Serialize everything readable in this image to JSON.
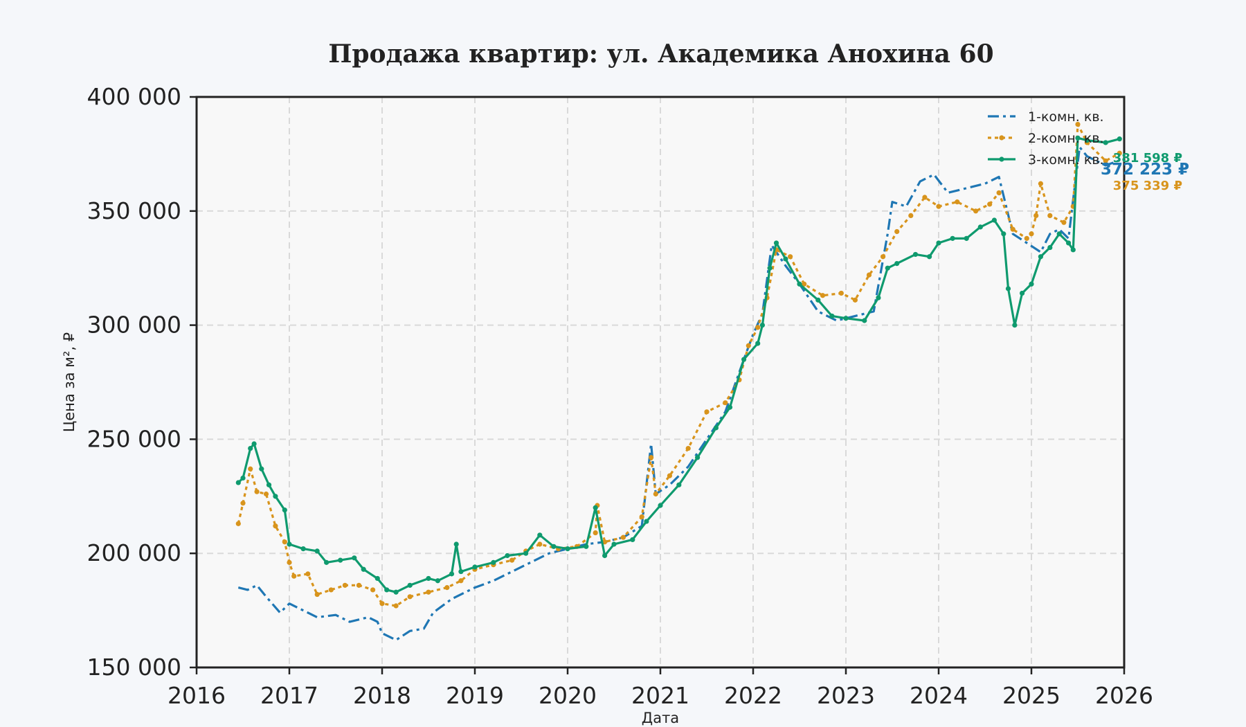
{
  "chart_data": {
    "type": "line",
    "title": "Продажа квартир: ул. Академика Анохина 60",
    "xlabel": "Дата",
    "ylabel": "Цена за м², ₽",
    "xlim": [
      2016,
      2026
    ],
    "ylim": [
      150000,
      400000
    ],
    "x_ticks": [
      "2016",
      "2017",
      "2018",
      "2019",
      "2020",
      "2021",
      "2022",
      "2023",
      "2024",
      "2025",
      "2026"
    ],
    "y_ticks": [
      "150 000",
      "200 000",
      "250 000",
      "300 000",
      "350 000",
      "400 000"
    ],
    "grid": true,
    "legend_position": "top-right",
    "series": [
      {
        "name": "1-комн. кв.",
        "color": "#1f77b4",
        "style": "dashdot",
        "end_label": "372 223 ₽",
        "points": [
          [
            2016.45,
            185000
          ],
          [
            2016.55,
            184000
          ],
          [
            2016.65,
            186000
          ],
          [
            2016.75,
            181000
          ],
          [
            2016.9,
            174000
          ],
          [
            2017.0,
            178000
          ],
          [
            2017.1,
            176000
          ],
          [
            2017.3,
            172000
          ],
          [
            2017.5,
            173000
          ],
          [
            2017.65,
            170000
          ],
          [
            2017.85,
            172000
          ],
          [
            2017.95,
            170000
          ],
          [
            2018.0,
            165000
          ],
          [
            2018.15,
            162000
          ],
          [
            2018.3,
            166000
          ],
          [
            2018.45,
            167000
          ],
          [
            2018.55,
            174000
          ],
          [
            2018.75,
            180000
          ],
          [
            2018.9,
            183000
          ],
          [
            2019.0,
            185000
          ],
          [
            2019.2,
            188000
          ],
          [
            2019.4,
            192000
          ],
          [
            2019.6,
            196000
          ],
          [
            2019.8,
            200000
          ],
          [
            2020.0,
            202000
          ],
          [
            2020.2,
            204000
          ],
          [
            2020.4,
            205000
          ],
          [
            2020.6,
            207000
          ],
          [
            2020.8,
            212000
          ],
          [
            2020.9,
            248000
          ],
          [
            2020.95,
            226000
          ],
          [
            2021.1,
            230000
          ],
          [
            2021.3,
            238000
          ],
          [
            2021.5,
            250000
          ],
          [
            2021.7,
            262000
          ],
          [
            2021.9,
            285000
          ],
          [
            2022.0,
            296000
          ],
          [
            2022.1,
            305000
          ],
          [
            2022.2,
            335000
          ],
          [
            2022.35,
            326000
          ],
          [
            2022.5,
            318000
          ],
          [
            2022.7,
            306000
          ],
          [
            2022.9,
            302000
          ],
          [
            2023.1,
            304000
          ],
          [
            2023.3,
            306000
          ],
          [
            2023.45,
            340000
          ],
          [
            2023.5,
            354000
          ],
          [
            2023.65,
            352000
          ],
          [
            2023.8,
            363000
          ],
          [
            2023.95,
            366000
          ],
          [
            2024.1,
            358000
          ],
          [
            2024.3,
            360000
          ],
          [
            2024.5,
            362000
          ],
          [
            2024.65,
            365000
          ],
          [
            2024.8,
            340000
          ],
          [
            2024.95,
            336000
          ],
          [
            2025.1,
            332000
          ],
          [
            2025.2,
            340000
          ],
          [
            2025.3,
            342000
          ],
          [
            2025.4,
            338000
          ],
          [
            2025.45,
            355000
          ],
          [
            2025.52,
            378000
          ],
          [
            2025.6,
            374000
          ],
          [
            2025.8,
            370000
          ],
          [
            2025.95,
            372223
          ]
        ]
      },
      {
        "name": "2-комн. кв.",
        "color": "#d8941c",
        "style": "dotted-markers",
        "end_label": "375 339 ₽",
        "points": [
          [
            2016.45,
            213000
          ],
          [
            2016.5,
            222000
          ],
          [
            2016.58,
            237000
          ],
          [
            2016.65,
            227000
          ],
          [
            2016.75,
            226000
          ],
          [
            2016.85,
            212000
          ],
          [
            2016.95,
            205000
          ],
          [
            2017.0,
            196000
          ],
          [
            2017.05,
            190000
          ],
          [
            2017.2,
            191000
          ],
          [
            2017.3,
            182000
          ],
          [
            2017.45,
            184000
          ],
          [
            2017.6,
            186000
          ],
          [
            2017.75,
            186000
          ],
          [
            2017.9,
            184000
          ],
          [
            2018.0,
            178000
          ],
          [
            2018.15,
            177000
          ],
          [
            2018.3,
            181000
          ],
          [
            2018.5,
            183000
          ],
          [
            2018.7,
            185000
          ],
          [
            2018.85,
            188000
          ],
          [
            2019.0,
            193000
          ],
          [
            2019.2,
            195000
          ],
          [
            2019.4,
            197000
          ],
          [
            2019.55,
            201000
          ],
          [
            2019.7,
            204000
          ],
          [
            2019.9,
            202000
          ],
          [
            2020.1,
            203000
          ],
          [
            2020.3,
            209000
          ],
          [
            2020.32,
            221000
          ],
          [
            2020.4,
            205000
          ],
          [
            2020.6,
            207000
          ],
          [
            2020.8,
            216000
          ],
          [
            2020.9,
            242000
          ],
          [
            2020.95,
            226000
          ],
          [
            2021.1,
            234000
          ],
          [
            2021.3,
            246000
          ],
          [
            2021.5,
            262000
          ],
          [
            2021.7,
            266000
          ],
          [
            2021.85,
            276000
          ],
          [
            2021.95,
            291000
          ],
          [
            2022.05,
            299000
          ],
          [
            2022.15,
            312000
          ],
          [
            2022.25,
            333000
          ],
          [
            2022.4,
            330000
          ],
          [
            2022.55,
            318000
          ],
          [
            2022.75,
            313000
          ],
          [
            2022.95,
            314000
          ],
          [
            2023.1,
            311000
          ],
          [
            2023.25,
            322000
          ],
          [
            2023.4,
            330000
          ],
          [
            2023.55,
            341000
          ],
          [
            2023.7,
            348000
          ],
          [
            2023.85,
            356000
          ],
          [
            2024.0,
            352000
          ],
          [
            2024.2,
            354000
          ],
          [
            2024.4,
            350000
          ],
          [
            2024.55,
            353000
          ],
          [
            2024.65,
            358000
          ],
          [
            2024.8,
            342000
          ],
          [
            2024.95,
            338000
          ],
          [
            2025.0,
            340000
          ],
          [
            2025.05,
            348000
          ],
          [
            2025.1,
            362000
          ],
          [
            2025.2,
            348000
          ],
          [
            2025.35,
            345000
          ],
          [
            2025.45,
            352000
          ],
          [
            2025.5,
            388000
          ],
          [
            2025.6,
            380000
          ],
          [
            2025.8,
            372000
          ],
          [
            2025.95,
            375339
          ]
        ]
      },
      {
        "name": "3-комн. кв.",
        "color": "#0f9a6e",
        "style": "solid-markers",
        "end_label": "381 598 ₽",
        "points": [
          [
            2016.45,
            231000
          ],
          [
            2016.5,
            233000
          ],
          [
            2016.58,
            246000
          ],
          [
            2016.62,
            248000
          ],
          [
            2016.7,
            237000
          ],
          [
            2016.78,
            230000
          ],
          [
            2016.85,
            225000
          ],
          [
            2016.95,
            219000
          ],
          [
            2017.0,
            204000
          ],
          [
            2017.15,
            202000
          ],
          [
            2017.3,
            201000
          ],
          [
            2017.4,
            196000
          ],
          [
            2017.55,
            197000
          ],
          [
            2017.7,
            198000
          ],
          [
            2017.8,
            193000
          ],
          [
            2017.95,
            189000
          ],
          [
            2018.05,
            184000
          ],
          [
            2018.15,
            183000
          ],
          [
            2018.3,
            186000
          ],
          [
            2018.5,
            189000
          ],
          [
            2018.6,
            188000
          ],
          [
            2018.75,
            191000
          ],
          [
            2018.8,
            204000
          ],
          [
            2018.85,
            192000
          ],
          [
            2019.0,
            194000
          ],
          [
            2019.2,
            196000
          ],
          [
            2019.35,
            199000
          ],
          [
            2019.55,
            200000
          ],
          [
            2019.7,
            208000
          ],
          [
            2019.85,
            203000
          ],
          [
            2020.0,
            202000
          ],
          [
            2020.2,
            203000
          ],
          [
            2020.3,
            220000
          ],
          [
            2020.4,
            199000
          ],
          [
            2020.5,
            204000
          ],
          [
            2020.7,
            206000
          ],
          [
            2020.85,
            214000
          ],
          [
            2021.0,
            221000
          ],
          [
            2021.2,
            230000
          ],
          [
            2021.4,
            242000
          ],
          [
            2021.6,
            255000
          ],
          [
            2021.75,
            264000
          ],
          [
            2021.9,
            285000
          ],
          [
            2022.05,
            292000
          ],
          [
            2022.1,
            300000
          ],
          [
            2022.18,
            325000
          ],
          [
            2022.25,
            336000
          ],
          [
            2022.35,
            329000
          ],
          [
            2022.5,
            318000
          ],
          [
            2022.7,
            311000
          ],
          [
            2022.85,
            304000
          ],
          [
            2023.0,
            303000
          ],
          [
            2023.2,
            302000
          ],
          [
            2023.35,
            312000
          ],
          [
            2023.45,
            325000
          ],
          [
            2023.55,
            327000
          ],
          [
            2023.75,
            331000
          ],
          [
            2023.9,
            330000
          ],
          [
            2024.0,
            336000
          ],
          [
            2024.15,
            338000
          ],
          [
            2024.3,
            338000
          ],
          [
            2024.45,
            343000
          ],
          [
            2024.6,
            346000
          ],
          [
            2024.7,
            340000
          ],
          [
            2024.75,
            316000
          ],
          [
            2024.82,
            300000
          ],
          [
            2024.9,
            314000
          ],
          [
            2025.0,
            318000
          ],
          [
            2025.1,
            330000
          ],
          [
            2025.2,
            334000
          ],
          [
            2025.3,
            340000
          ],
          [
            2025.4,
            336000
          ],
          [
            2025.45,
            333000
          ],
          [
            2025.5,
            382000
          ],
          [
            2025.6,
            381000
          ],
          [
            2025.8,
            380000
          ],
          [
            2025.95,
            381598
          ]
        ]
      }
    ]
  }
}
